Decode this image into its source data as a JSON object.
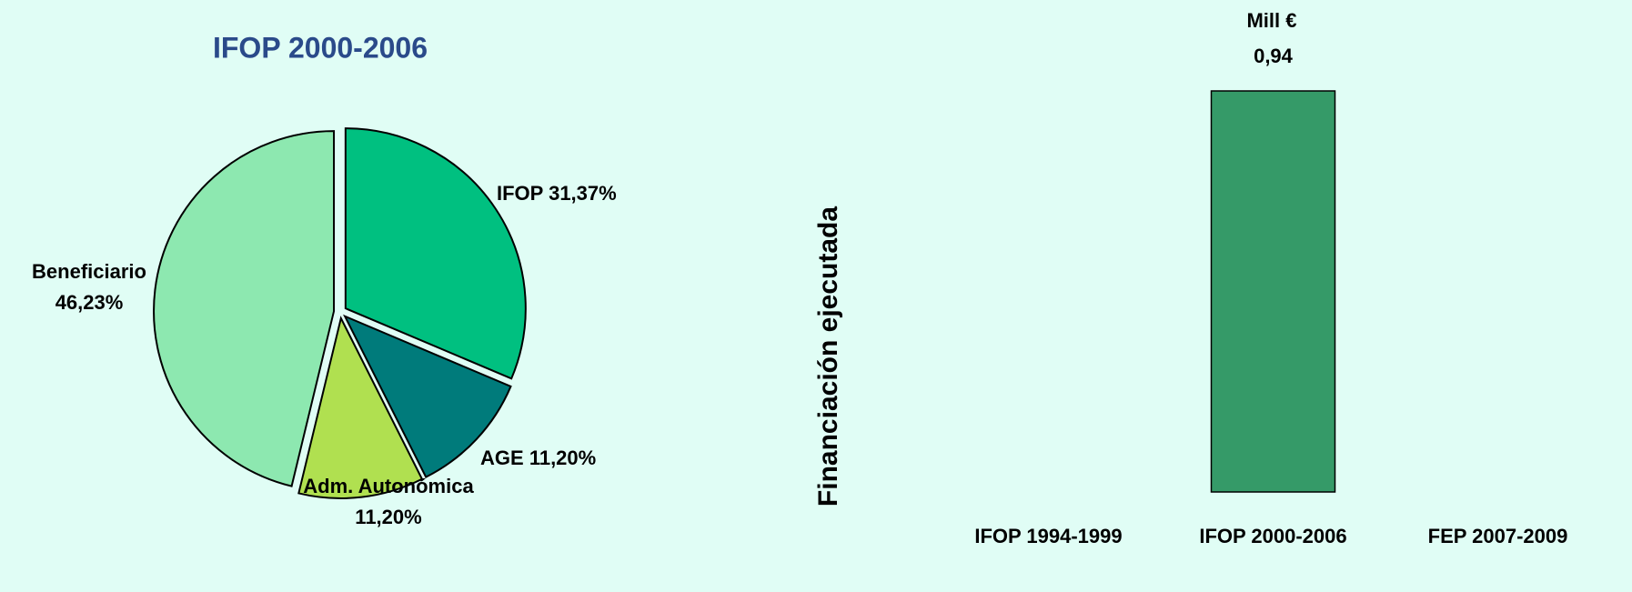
{
  "chart_data": [
    {
      "type": "pie",
      "title": "IFOP 2000-2006",
      "categories": [
        "IFOP",
        "AGE",
        "Adm. Autonómica",
        "Beneficiario"
      ],
      "values": [
        31.37,
        11.2,
        11.2,
        46.23
      ],
      "value_labels": [
        "31,37%",
        "11,20%",
        "11,20%",
        "46,23%"
      ],
      "colors": [
        "#00c080",
        "#007b7b",
        "#b0e050",
        "#8de8b0"
      ]
    },
    {
      "type": "bar",
      "ylabel": "Financiación ejecutada",
      "unit": "Mill €",
      "categories": [
        "IFOP 1994-1999",
        "IFOP 2000-2006",
        "FEP 2007-2009"
      ],
      "values": [
        null,
        0.94,
        null
      ],
      "value_labels": [
        null,
        "0,94",
        null
      ],
      "color": "#359a68"
    }
  ]
}
